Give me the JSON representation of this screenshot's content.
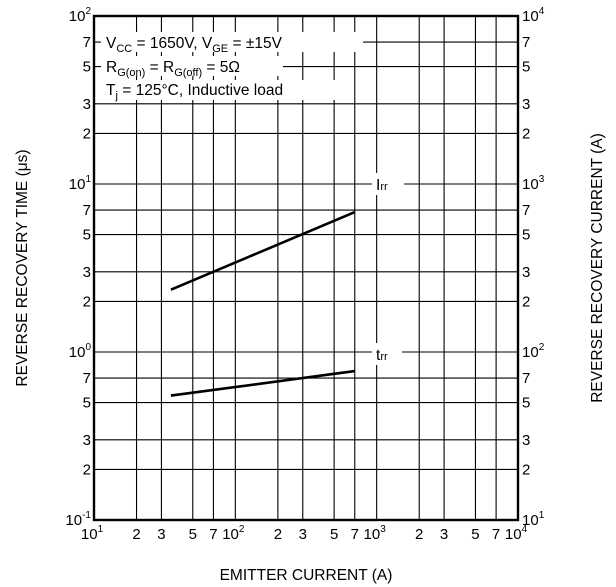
{
  "chart_data": {
    "type": "line",
    "title": "",
    "xlabel": "EMITTER CURRENT (A)",
    "ylabel_left": "REVERSE RECOVERY TIME (μs)",
    "ylabel_right": "REVERSE RECOVERY CURRENT (A)",
    "x_scale": "log",
    "y_scale": "log",
    "xlim": [
      10,
      10000
    ],
    "ylim_left": [
      0.1,
      100
    ],
    "ylim_right": [
      10,
      10000
    ],
    "grid": true,
    "x_ticks": [
      {
        "value": 10,
        "base": "10",
        "exp": "1"
      },
      {
        "value": 20,
        "label": "2"
      },
      {
        "value": 30,
        "label": "3"
      },
      {
        "value": 50,
        "label": "5"
      },
      {
        "value": 70,
        "label": "7"
      },
      {
        "value": 100,
        "base": "10",
        "exp": "2"
      },
      {
        "value": 200,
        "label": "2"
      },
      {
        "value": 300,
        "label": "3"
      },
      {
        "value": 500,
        "label": "5"
      },
      {
        "value": 700,
        "label": "7"
      },
      {
        "value": 1000,
        "base": "10",
        "exp": "3"
      },
      {
        "value": 2000,
        "label": "2"
      },
      {
        "value": 3000,
        "label": "3"
      },
      {
        "value": 5000,
        "label": "5"
      },
      {
        "value": 7000,
        "label": "7"
      },
      {
        "value": 10000,
        "base": "10",
        "exp": "4"
      }
    ],
    "y_ticks_left": [
      {
        "value": 0.1,
        "base": "10",
        "exp": "-1"
      },
      {
        "value": 0.2,
        "label": "2"
      },
      {
        "value": 0.3,
        "label": "3"
      },
      {
        "value": 0.5,
        "label": "5"
      },
      {
        "value": 0.7,
        "label": "7"
      },
      {
        "value": 1,
        "base": "10",
        "exp": "0"
      },
      {
        "value": 2,
        "label": "2"
      },
      {
        "value": 3,
        "label": "3"
      },
      {
        "value": 5,
        "label": "5"
      },
      {
        "value": 7,
        "label": "7"
      },
      {
        "value": 10,
        "base": "10",
        "exp": "1"
      },
      {
        "value": 20,
        "label": "2"
      },
      {
        "value": 30,
        "label": "3"
      },
      {
        "value": 50,
        "label": "5"
      },
      {
        "value": 70,
        "label": "7"
      },
      {
        "value": 100,
        "base": "10",
        "exp": "2"
      }
    ],
    "y_ticks_right": [
      {
        "value": 10,
        "base": "10",
        "exp": "1"
      },
      {
        "value": 20,
        "label": "2"
      },
      {
        "value": 30,
        "label": "3"
      },
      {
        "value": 50,
        "label": "5"
      },
      {
        "value": 70,
        "label": "7"
      },
      {
        "value": 100,
        "base": "10",
        "exp": "2"
      },
      {
        "value": 200,
        "label": "2"
      },
      {
        "value": 300,
        "label": "3"
      },
      {
        "value": 500,
        "label": "5"
      },
      {
        "value": 700,
        "label": "7"
      },
      {
        "value": 1000,
        "base": "10",
        "exp": "3"
      },
      {
        "value": 2000,
        "label": "2"
      },
      {
        "value": 3000,
        "label": "3"
      },
      {
        "value": 5000,
        "label": "5"
      },
      {
        "value": 7000,
        "label": "7"
      },
      {
        "value": 10000,
        "base": "10",
        "exp": "4"
      }
    ],
    "conditions": [
      [
        {
          "t": "V"
        },
        {
          "t": "CC",
          "sub": true
        },
        {
          "t": " = 1650V, V"
        },
        {
          "t": "GE",
          "sub": true
        },
        {
          "t": " = ±15V"
        }
      ],
      [
        {
          "t": "R"
        },
        {
          "t": "G(on)",
          "sub": true
        },
        {
          "t": " = R"
        },
        {
          "t": "G(off)",
          "sub": true
        },
        {
          "t": " = 5Ω"
        }
      ],
      [
        {
          "t": "T"
        },
        {
          "t": "j",
          "sub": true
        },
        {
          "t": " = 125°C, Inductive load"
        }
      ]
    ],
    "series": [
      {
        "label_main": "I",
        "label_sub": "rr",
        "axis": "right",
        "x": [
          35,
          700
        ],
        "y": [
          235,
          680
        ]
      },
      {
        "label_main": "t",
        "label_sub": "rr",
        "axis": "left",
        "x": [
          35,
          700
        ],
        "y": [
          0.55,
          0.77
        ]
      }
    ]
  }
}
